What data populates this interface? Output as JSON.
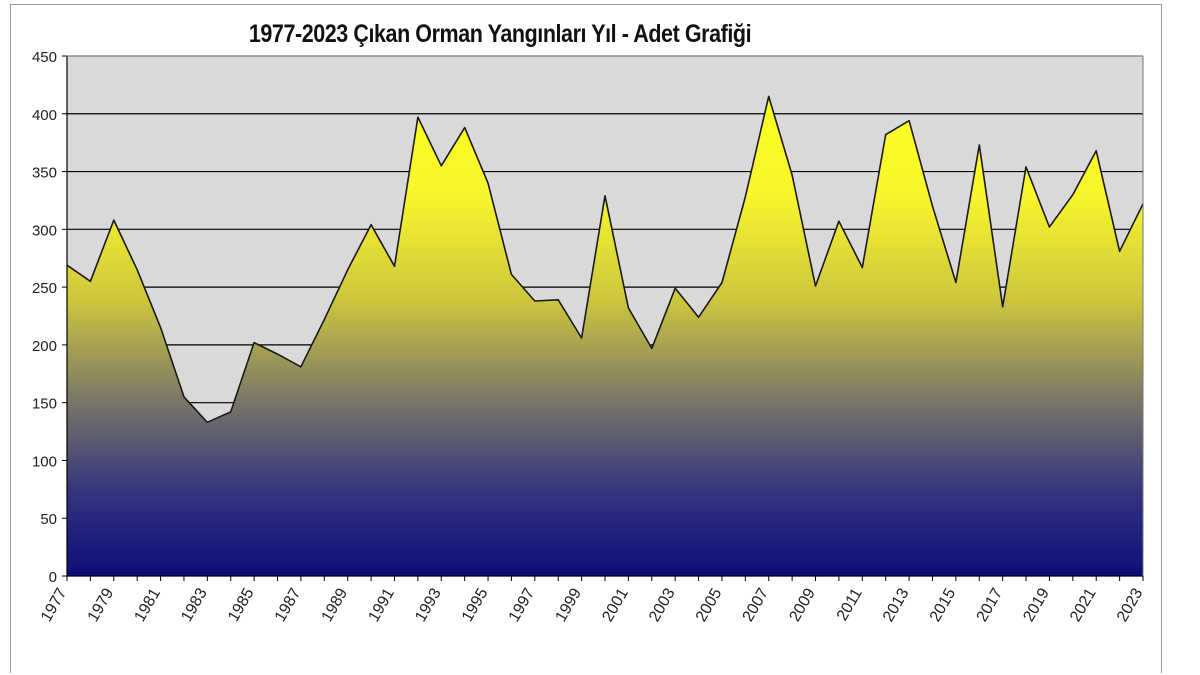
{
  "chart_data": {
    "type": "area",
    "title": "1977-2023 Çıkan Orman Yangınları Yıl - Adet Grafiği",
    "xlabel": "",
    "ylabel": "",
    "ylim": [
      0,
      450
    ],
    "yticks": [
      0,
      50,
      100,
      150,
      200,
      250,
      300,
      350,
      400,
      450
    ],
    "xtick_labels": [
      "1977",
      "1979",
      "1981",
      "1983",
      "1985",
      "1987",
      "1989",
      "1991",
      "1993",
      "1995",
      "1997",
      "1999",
      "2001",
      "2003",
      "2005",
      "2007",
      "2009",
      "2011",
      "2013",
      "2015",
      "2017",
      "2019",
      "2021",
      "2023"
    ],
    "grid": true,
    "legend": "none",
    "colors": {
      "plot_background": "#d9d9d9",
      "fill_top": "#ffff22",
      "fill_mid": "#d6d02e",
      "fill_bottom": "#11117a",
      "line": "#1a1a1a",
      "grid": "#000000"
    },
    "x": [
      1977,
      1978,
      1979,
      1980,
      1981,
      1982,
      1983,
      1984,
      1985,
      1986,
      1987,
      1988,
      1989,
      1990,
      1991,
      1992,
      1993,
      1994,
      1995,
      1996,
      1997,
      1998,
      1999,
      2000,
      2001,
      2002,
      2003,
      2004,
      2005,
      2006,
      2007,
      2008,
      2009,
      2010,
      2011,
      2012,
      2013,
      2014,
      2015,
      2016,
      2017,
      2018,
      2019,
      2020,
      2021,
      2022,
      2023
    ],
    "series": [
      {
        "values": [
          269,
          255,
          308,
          265,
          215,
          155,
          133,
          142,
          202,
          192,
          181,
          222,
          265,
          304,
          268,
          397,
          355,
          388,
          340,
          261,
          238,
          239,
          206,
          329,
          232,
          197,
          249,
          224,
          254,
          328,
          415,
          347,
          251,
          307,
          267,
          382,
          394,
          320,
          254,
          373,
          233,
          354,
          302,
          330,
          368,
          281,
          322
        ]
      }
    ]
  }
}
